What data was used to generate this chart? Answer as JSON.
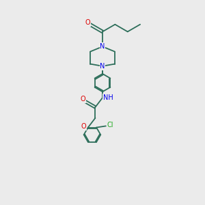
{
  "bg_color": "#ebebeb",
  "bond_color": "#2d6e5a",
  "N_color": "#0000ee",
  "O_color": "#dd0000",
  "Cl_color": "#22aa22",
  "line_width": 1.3,
  "figsize": [
    3.0,
    3.0
  ],
  "dpi": 100,
  "xlim": [
    0,
    10
  ],
  "ylim": [
    0,
    10
  ]
}
